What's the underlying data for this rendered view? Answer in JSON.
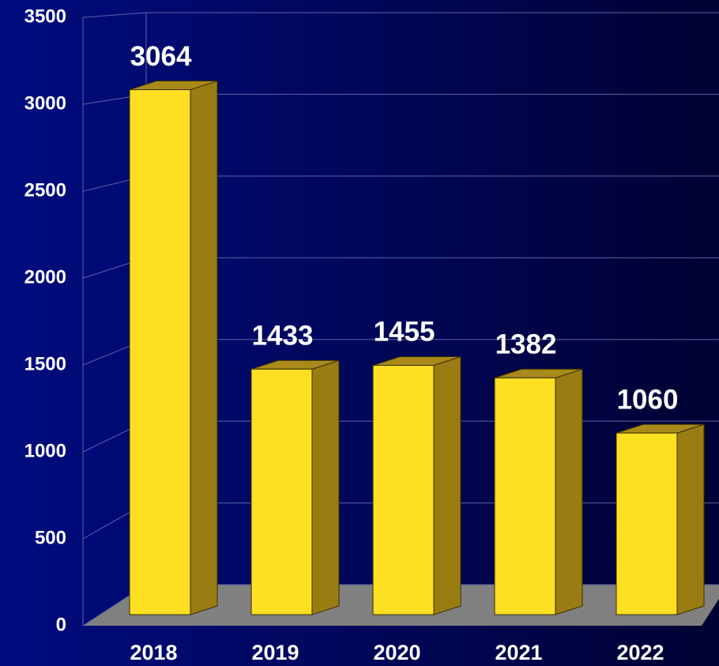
{
  "chart_data": {
    "type": "bar",
    "categories": [
      "2018",
      "2019",
      "2020",
      "2021",
      "2022"
    ],
    "values": [
      3064,
      1433,
      1455,
      1382,
      1060
    ],
    "color": "#ffdf22",
    "ylim": [
      0,
      3500
    ],
    "yticks": [
      0,
      500,
      1000,
      1500,
      2000,
      2500,
      3000,
      3500
    ],
    "grid": true
  }
}
